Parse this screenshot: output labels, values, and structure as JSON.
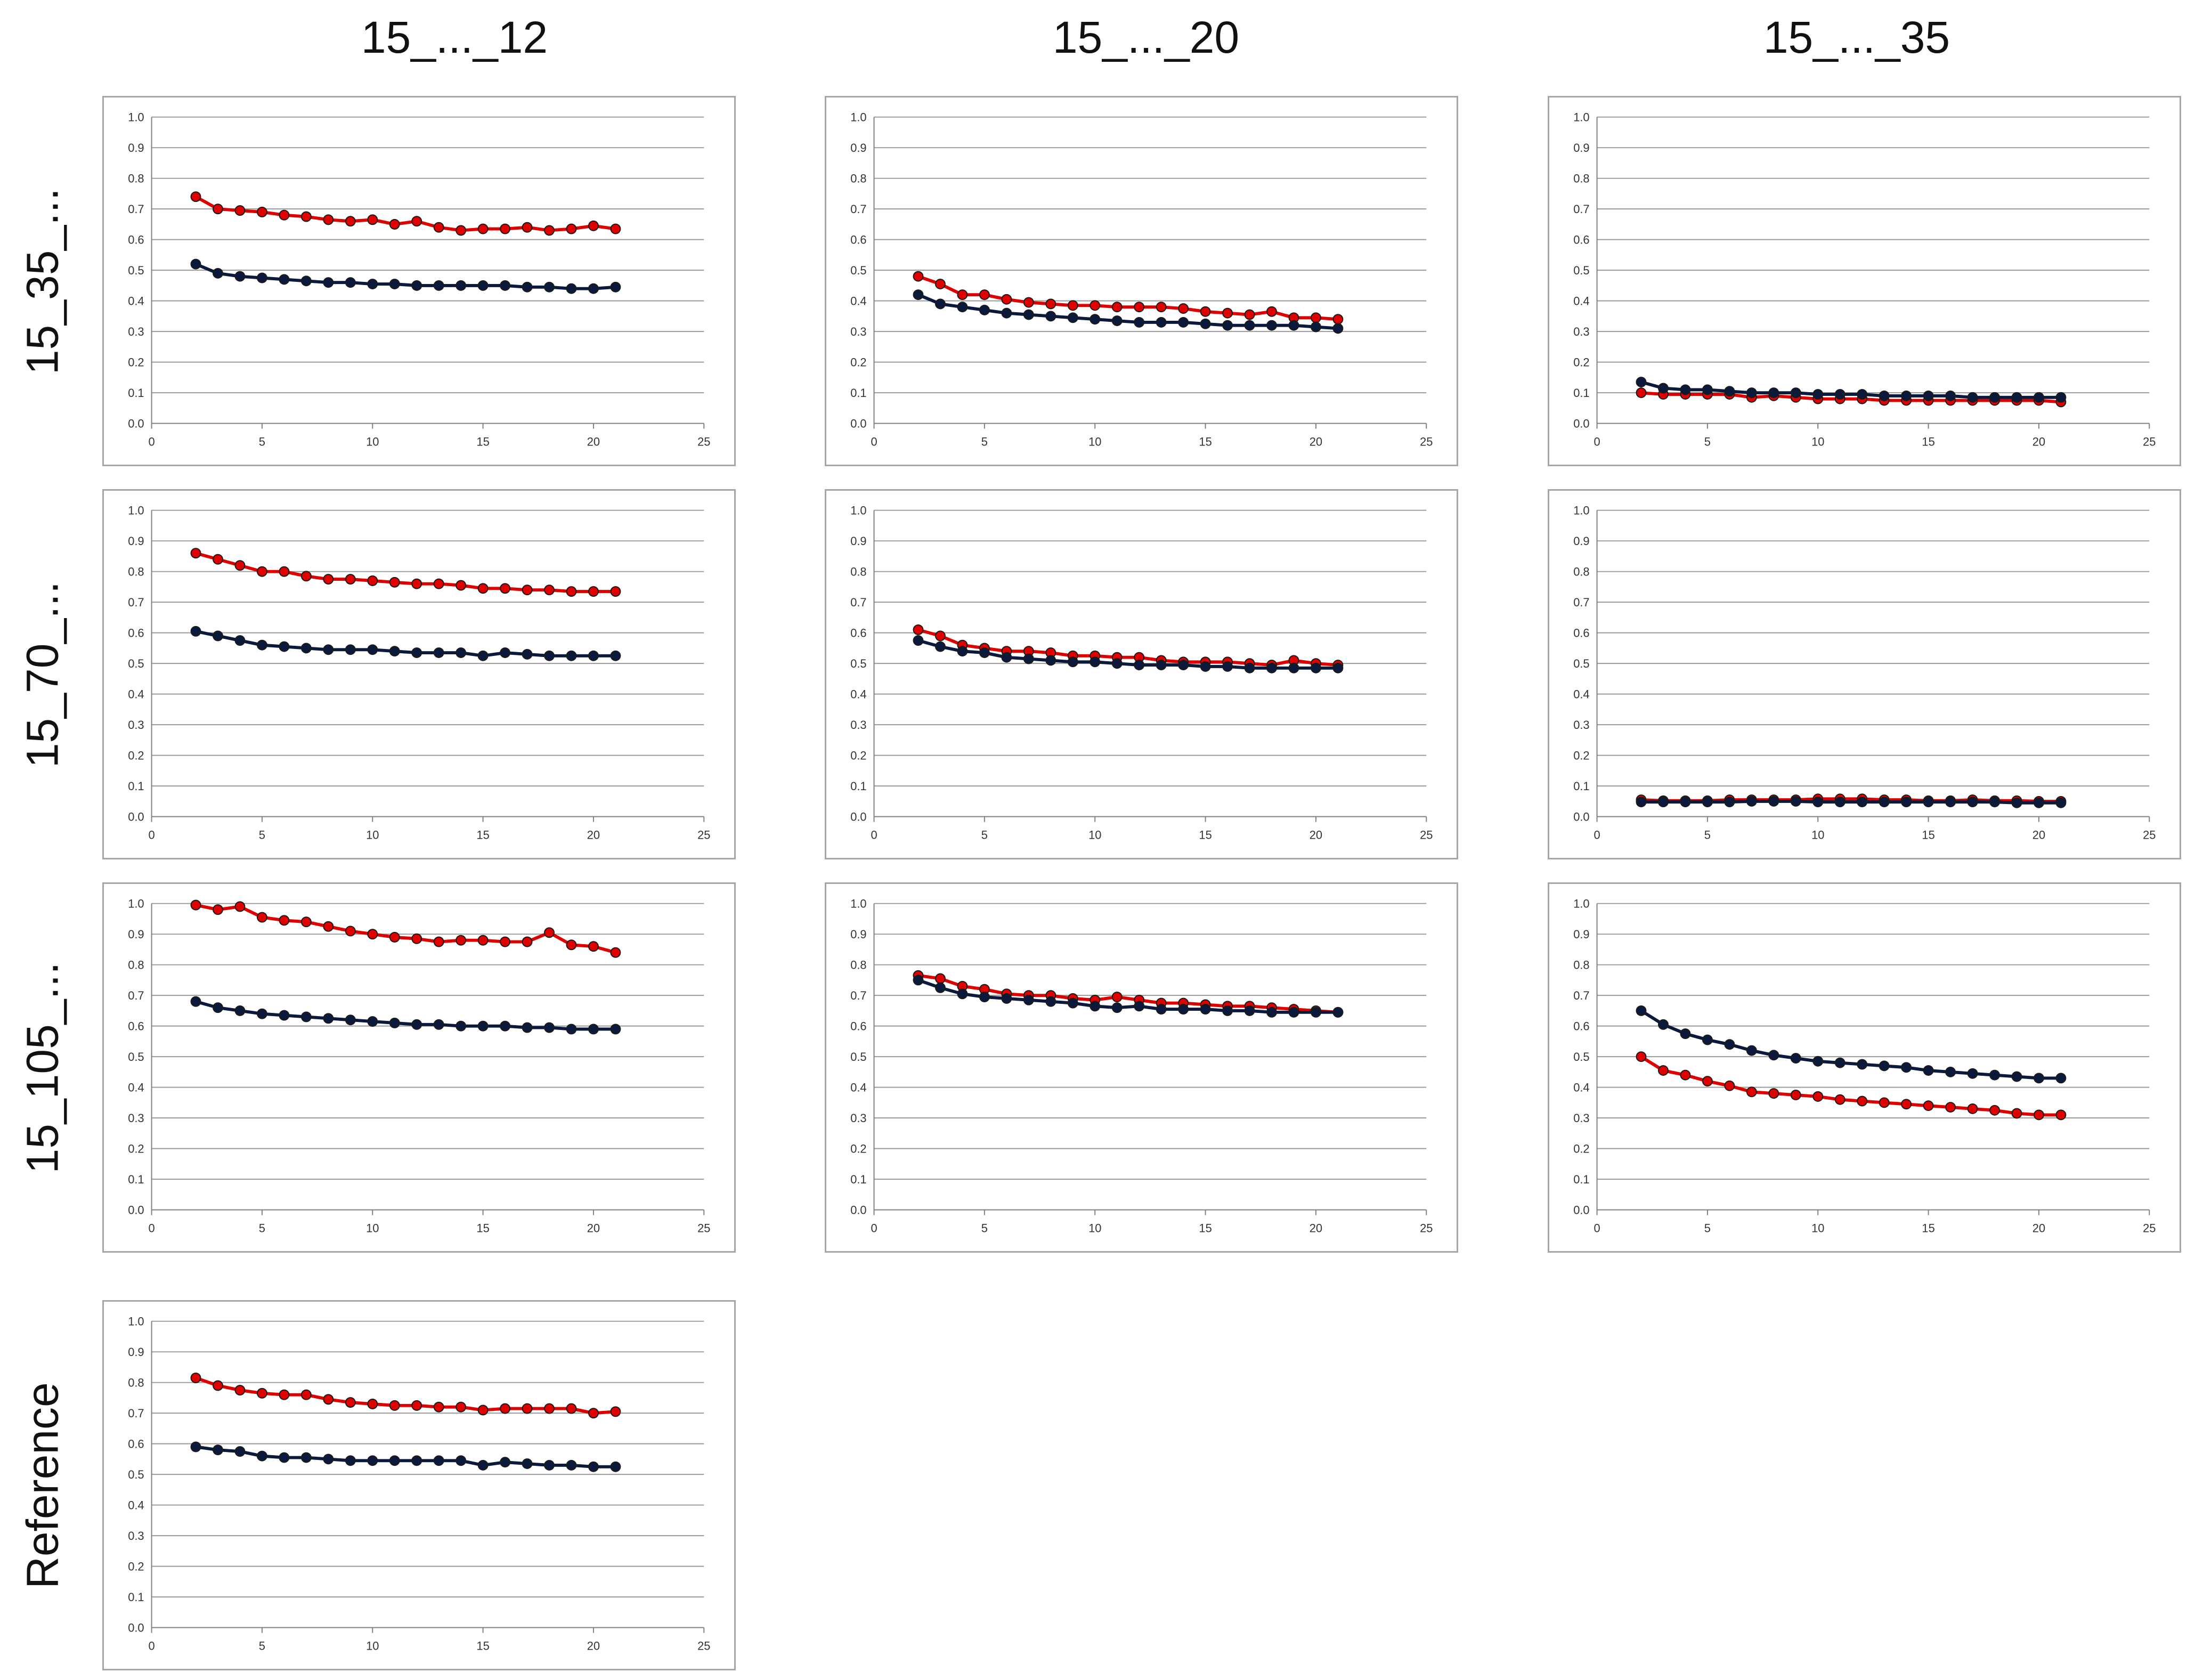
{
  "columns": [
    "15_..._12",
    "15_..._20",
    "15_..._35"
  ],
  "rows": [
    "15_35_...",
    "15_70_...",
    "15_105_...",
    "Reference"
  ],
  "colors": {
    "red_series": "#e00000",
    "black_series": "#0b1a3c",
    "grid": "#9a9a9a",
    "frame": "#a6a6a6",
    "axis": "#808080"
  },
  "chart_data": [
    {
      "type": "line",
      "panel": "row-1-col-1",
      "row": "15_35_...",
      "column": "15_..._12",
      "xlim": [
        0,
        25
      ],
      "ylim": [
        0,
        1.0
      ],
      "xticks": [
        "0",
        "5",
        "10",
        "15",
        "20",
        "25"
      ],
      "yticks": [
        "0.0",
        "0.1",
        "0.2",
        "0.3",
        "0.4",
        "0.5",
        "0.6",
        "0.7",
        "0.8",
        "0.9",
        "1.0"
      ],
      "x": [
        2,
        3,
        4,
        5,
        6,
        7,
        8,
        9,
        10,
        11,
        12,
        13,
        14,
        15,
        16,
        17,
        18,
        19,
        20,
        21
      ],
      "series": [
        {
          "name": "red",
          "color": "#e00000",
          "values": [
            0.74,
            0.7,
            0.695,
            0.69,
            0.68,
            0.675,
            0.665,
            0.66,
            0.665,
            0.65,
            0.66,
            0.64,
            0.63,
            0.635,
            0.635,
            0.64,
            0.63,
            0.635,
            0.645,
            0.635
          ]
        },
        {
          "name": "black",
          "color": "#0b1a3c",
          "values": [
            0.52,
            0.49,
            0.48,
            0.475,
            0.47,
            0.465,
            0.46,
            0.46,
            0.455,
            0.455,
            0.45,
            0.45,
            0.45,
            0.45,
            0.45,
            0.445,
            0.445,
            0.44,
            0.44,
            0.445
          ]
        }
      ]
    },
    {
      "type": "line",
      "panel": "row-1-col-2",
      "row": "15_35_...",
      "column": "15_..._20",
      "xlim": [
        0,
        25
      ],
      "ylim": [
        0,
        1.0
      ],
      "xticks": [
        "0",
        "5",
        "10",
        "15",
        "20",
        "25"
      ],
      "yticks": [
        "0.0",
        "0.1",
        "0.2",
        "0.3",
        "0.4",
        "0.5",
        "0.6",
        "0.7",
        "0.8",
        "0.9",
        "1.0"
      ],
      "x": [
        2,
        3,
        4,
        5,
        6,
        7,
        8,
        9,
        10,
        11,
        12,
        13,
        14,
        15,
        16,
        17,
        18,
        19,
        20,
        21
      ],
      "series": [
        {
          "name": "red",
          "color": "#e00000",
          "values": [
            0.48,
            0.455,
            0.42,
            0.42,
            0.405,
            0.395,
            0.39,
            0.385,
            0.385,
            0.38,
            0.38,
            0.38,
            0.375,
            0.365,
            0.36,
            0.355,
            0.365,
            0.345,
            0.345,
            0.34
          ]
        },
        {
          "name": "black",
          "color": "#0b1a3c",
          "values": [
            0.42,
            0.39,
            0.38,
            0.37,
            0.36,
            0.355,
            0.35,
            0.345,
            0.34,
            0.335,
            0.33,
            0.33,
            0.33,
            0.325,
            0.32,
            0.32,
            0.32,
            0.32,
            0.315,
            0.31
          ]
        }
      ]
    },
    {
      "type": "line",
      "panel": "row-1-col-3",
      "row": "15_35_...",
      "column": "15_..._35",
      "xlim": [
        0,
        25
      ],
      "ylim": [
        0,
        1.0
      ],
      "xticks": [
        "0",
        "5",
        "10",
        "15",
        "20",
        "25"
      ],
      "yticks": [
        "0.0",
        "0.1",
        "0.2",
        "0.3",
        "0.4",
        "0.5",
        "0.6",
        "0.7",
        "0.8",
        "0.9",
        "1.0"
      ],
      "x": [
        2,
        3,
        4,
        5,
        6,
        7,
        8,
        9,
        10,
        11,
        12,
        13,
        14,
        15,
        16,
        17,
        18,
        19,
        20,
        21
      ],
      "series": [
        {
          "name": "red",
          "color": "#e00000",
          "values": [
            0.1,
            0.095,
            0.095,
            0.095,
            0.095,
            0.085,
            0.09,
            0.085,
            0.08,
            0.08,
            0.08,
            0.075,
            0.075,
            0.075,
            0.075,
            0.075,
            0.075,
            0.075,
            0.075,
            0.07
          ]
        },
        {
          "name": "black",
          "color": "#0b1a3c",
          "values": [
            0.135,
            0.115,
            0.11,
            0.11,
            0.105,
            0.1,
            0.1,
            0.1,
            0.095,
            0.095,
            0.095,
            0.09,
            0.09,
            0.09,
            0.09,
            0.085,
            0.085,
            0.085,
            0.085,
            0.085
          ]
        }
      ]
    },
    {
      "type": "line",
      "panel": "row-2-col-1",
      "row": "15_70_...",
      "column": "15_..._12",
      "xlim": [
        0,
        25
      ],
      "ylim": [
        0,
        1.0
      ],
      "xticks": [
        "0",
        "5",
        "10",
        "15",
        "20",
        "25"
      ],
      "yticks": [
        "0.0",
        "0.1",
        "0.2",
        "0.3",
        "0.4",
        "0.5",
        "0.6",
        "0.7",
        "0.8",
        "0.9",
        "1.0"
      ],
      "x": [
        2,
        3,
        4,
        5,
        6,
        7,
        8,
        9,
        10,
        11,
        12,
        13,
        14,
        15,
        16,
        17,
        18,
        19,
        20,
        21
      ],
      "series": [
        {
          "name": "red",
          "color": "#e00000",
          "values": [
            0.86,
            0.84,
            0.82,
            0.8,
            0.8,
            0.785,
            0.775,
            0.775,
            0.77,
            0.765,
            0.76,
            0.76,
            0.755,
            0.745,
            0.745,
            0.74,
            0.74,
            0.735,
            0.735,
            0.735
          ]
        },
        {
          "name": "black",
          "color": "#0b1a3c",
          "values": [
            0.605,
            0.59,
            0.575,
            0.56,
            0.555,
            0.55,
            0.545,
            0.545,
            0.545,
            0.54,
            0.535,
            0.535,
            0.535,
            0.525,
            0.535,
            0.53,
            0.525,
            0.525,
            0.525,
            0.525
          ]
        }
      ]
    },
    {
      "type": "line",
      "panel": "row-2-col-2",
      "row": "15_70_...",
      "column": "15_..._20",
      "xlim": [
        0,
        25
      ],
      "ylim": [
        0,
        1.0
      ],
      "xticks": [
        "0",
        "5",
        "10",
        "15",
        "20",
        "25"
      ],
      "yticks": [
        "0.0",
        "0.1",
        "0.2",
        "0.3",
        "0.4",
        "0.5",
        "0.6",
        "0.7",
        "0.8",
        "0.9",
        "1.0"
      ],
      "x": [
        2,
        3,
        4,
        5,
        6,
        7,
        8,
        9,
        10,
        11,
        12,
        13,
        14,
        15,
        16,
        17,
        18,
        19,
        20,
        21
      ],
      "series": [
        {
          "name": "red",
          "color": "#e00000",
          "values": [
            0.61,
            0.59,
            0.56,
            0.55,
            0.54,
            0.54,
            0.535,
            0.525,
            0.525,
            0.52,
            0.52,
            0.51,
            0.505,
            0.505,
            0.505,
            0.5,
            0.495,
            0.51,
            0.5,
            0.495
          ]
        },
        {
          "name": "black",
          "color": "#0b1a3c",
          "values": [
            0.575,
            0.555,
            0.54,
            0.535,
            0.52,
            0.515,
            0.51,
            0.505,
            0.505,
            0.5,
            0.495,
            0.495,
            0.495,
            0.49,
            0.49,
            0.485,
            0.485,
            0.485,
            0.485,
            0.485
          ]
        }
      ]
    },
    {
      "type": "line",
      "panel": "row-2-col-3",
      "row": "15_70_...",
      "column": "15_..._35",
      "xlim": [
        0,
        25
      ],
      "ylim": [
        0,
        1.0
      ],
      "xticks": [
        "0",
        "5",
        "10",
        "15",
        "20",
        "25"
      ],
      "yticks": [
        "0.0",
        "0.1",
        "0.2",
        "0.3",
        "0.4",
        "0.5",
        "0.6",
        "0.7",
        "0.8",
        "0.9",
        "1.0"
      ],
      "x": [
        2,
        3,
        4,
        5,
        6,
        7,
        8,
        9,
        10,
        11,
        12,
        13,
        14,
        15,
        16,
        17,
        18,
        19,
        20,
        21
      ],
      "series": [
        {
          "name": "red",
          "color": "#e00000",
          "values": [
            0.055,
            0.052,
            0.052,
            0.052,
            0.055,
            0.055,
            0.055,
            0.055,
            0.058,
            0.058,
            0.058,
            0.055,
            0.055,
            0.052,
            0.052,
            0.055,
            0.052,
            0.052,
            0.05,
            0.05
          ]
        },
        {
          "name": "black",
          "color": "#0b1a3c",
          "values": [
            0.048,
            0.048,
            0.048,
            0.048,
            0.048,
            0.05,
            0.05,
            0.05,
            0.048,
            0.048,
            0.048,
            0.048,
            0.048,
            0.048,
            0.048,
            0.048,
            0.048,
            0.045,
            0.045,
            0.045
          ]
        }
      ]
    },
    {
      "type": "line",
      "panel": "row-3-col-1",
      "row": "15_105_...",
      "column": "15_..._12",
      "xlim": [
        0,
        25
      ],
      "ylim": [
        0,
        1.0
      ],
      "xticks": [
        "0",
        "5",
        "10",
        "15",
        "20",
        "25"
      ],
      "yticks": [
        "0.0",
        "0.1",
        "0.2",
        "0.3",
        "0.4",
        "0.5",
        "0.6",
        "0.7",
        "0.8",
        "0.9",
        "1.0"
      ],
      "x": [
        2,
        3,
        4,
        5,
        6,
        7,
        8,
        9,
        10,
        11,
        12,
        13,
        14,
        15,
        16,
        17,
        18,
        19,
        20,
        21
      ],
      "series": [
        {
          "name": "red",
          "color": "#e00000",
          "values": [
            0.995,
            0.98,
            0.99,
            0.955,
            0.945,
            0.94,
            0.925,
            0.91,
            0.9,
            0.89,
            0.885,
            0.875,
            0.88,
            0.88,
            0.875,
            0.875,
            0.905,
            0.865,
            0.86,
            0.84
          ]
        },
        {
          "name": "black",
          "color": "#0b1a3c",
          "values": [
            0.68,
            0.66,
            0.65,
            0.64,
            0.635,
            0.63,
            0.625,
            0.62,
            0.615,
            0.61,
            0.605,
            0.605,
            0.6,
            0.6,
            0.6,
            0.595,
            0.595,
            0.59,
            0.59,
            0.59
          ]
        }
      ]
    },
    {
      "type": "line",
      "panel": "row-3-col-2",
      "row": "15_105_...",
      "column": "15_..._20",
      "xlim": [
        0,
        25
      ],
      "ylim": [
        0,
        1.0
      ],
      "xticks": [
        "0",
        "5",
        "10",
        "15",
        "20",
        "25"
      ],
      "yticks": [
        "0.0",
        "0.1",
        "0.2",
        "0.3",
        "0.4",
        "0.5",
        "0.6",
        "0.7",
        "0.8",
        "0.9",
        "1.0"
      ],
      "x": [
        2,
        3,
        4,
        5,
        6,
        7,
        8,
        9,
        10,
        11,
        12,
        13,
        14,
        15,
        16,
        17,
        18,
        19,
        20,
        21
      ],
      "series": [
        {
          "name": "red",
          "color": "#e00000",
          "values": [
            0.765,
            0.755,
            0.73,
            0.72,
            0.705,
            0.7,
            0.7,
            0.69,
            0.685,
            0.695,
            0.685,
            0.675,
            0.675,
            0.67,
            0.665,
            0.665,
            0.66,
            0.655,
            0.65,
            0.645
          ]
        },
        {
          "name": "black",
          "color": "#0b1a3c",
          "values": [
            0.75,
            0.725,
            0.705,
            0.695,
            0.69,
            0.685,
            0.68,
            0.675,
            0.665,
            0.66,
            0.665,
            0.655,
            0.655,
            0.655,
            0.65,
            0.65,
            0.645,
            0.645,
            0.645,
            0.645
          ]
        }
      ]
    },
    {
      "type": "line",
      "panel": "row-3-col-3",
      "row": "15_105_...",
      "column": "15_..._35",
      "xlim": [
        0,
        25
      ],
      "ylim": [
        0,
        1.0
      ],
      "xticks": [
        "0",
        "5",
        "10",
        "15",
        "20",
        "25"
      ],
      "yticks": [
        "0.0",
        "0.1",
        "0.2",
        "0.3",
        "0.4",
        "0.5",
        "0.6",
        "0.7",
        "0.8",
        "0.9",
        "1.0"
      ],
      "x": [
        2,
        3,
        4,
        5,
        6,
        7,
        8,
        9,
        10,
        11,
        12,
        13,
        14,
        15,
        16,
        17,
        18,
        19,
        20,
        21
      ],
      "series": [
        {
          "name": "red",
          "color": "#e00000",
          "values": [
            0.5,
            0.455,
            0.44,
            0.42,
            0.405,
            0.385,
            0.38,
            0.375,
            0.37,
            0.36,
            0.355,
            0.35,
            0.345,
            0.34,
            0.335,
            0.33,
            0.325,
            0.315,
            0.31,
            0.31
          ]
        },
        {
          "name": "black",
          "color": "#0b1a3c",
          "values": [
            0.65,
            0.605,
            0.575,
            0.555,
            0.54,
            0.52,
            0.505,
            0.495,
            0.485,
            0.48,
            0.475,
            0.47,
            0.465,
            0.455,
            0.45,
            0.445,
            0.44,
            0.435,
            0.43,
            0.43
          ]
        }
      ]
    },
    {
      "type": "line",
      "panel": "row-4-col-1",
      "row": "Reference",
      "column": "15_..._12",
      "xlim": [
        0,
        25
      ],
      "ylim": [
        0,
        1.0
      ],
      "xticks": [
        "0",
        "5",
        "10",
        "15",
        "20",
        "25"
      ],
      "yticks": [
        "0.0",
        "0.1",
        "0.2",
        "0.3",
        "0.4",
        "0.5",
        "0.6",
        "0.7",
        "0.8",
        "0.9",
        "1.0"
      ],
      "x": [
        2,
        3,
        4,
        5,
        6,
        7,
        8,
        9,
        10,
        11,
        12,
        13,
        14,
        15,
        16,
        17,
        18,
        19,
        20,
        21
      ],
      "series": [
        {
          "name": "red",
          "color": "#e00000",
          "values": [
            0.815,
            0.79,
            0.775,
            0.765,
            0.76,
            0.76,
            0.745,
            0.735,
            0.73,
            0.725,
            0.725,
            0.72,
            0.72,
            0.71,
            0.715,
            0.715,
            0.715,
            0.715,
            0.7,
            0.705
          ]
        },
        {
          "name": "black",
          "color": "#0b1a3c",
          "values": [
            0.59,
            0.58,
            0.575,
            0.56,
            0.555,
            0.555,
            0.55,
            0.545,
            0.545,
            0.545,
            0.545,
            0.545,
            0.545,
            0.53,
            0.54,
            0.535,
            0.53,
            0.53,
            0.525,
            0.525
          ]
        }
      ]
    }
  ]
}
